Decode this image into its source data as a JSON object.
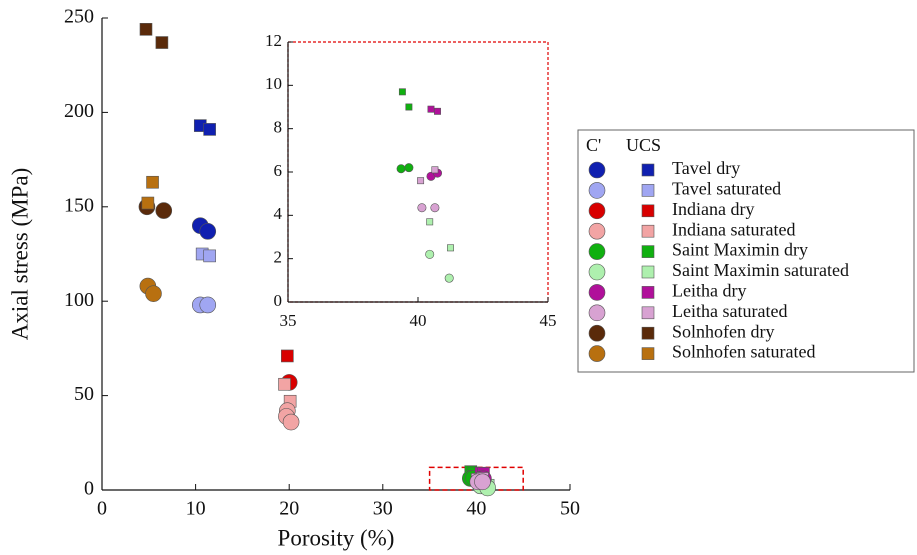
{
  "chart_data": {
    "type": "scatter",
    "xlabel": "Porosity (%)",
    "ylabel": "Axial stress (MPa)",
    "xlim": [
      0,
      50
    ],
    "ylim": [
      0,
      250
    ],
    "xticks": [
      0,
      10,
      20,
      30,
      40,
      50
    ],
    "yticks": [
      0,
      50,
      100,
      150,
      200,
      250
    ],
    "inset": {
      "xlim": [
        35,
        45
      ],
      "ylim": [
        0,
        12
      ],
      "xticks": [
        35,
        40,
        45
      ],
      "yticks": [
        0,
        2,
        4,
        6,
        8,
        10,
        12
      ],
      "frame_color": "#e00000"
    },
    "legend_header": [
      "C'",
      "UCS"
    ],
    "legend_position": "right",
    "series": [
      {
        "name": "Tavel dry",
        "color": "#1020b0",
        "cprime_x": [
          10.5,
          11.3
        ],
        "cprime_y": [
          140,
          137
        ],
        "ucs_x": [
          10.5,
          11.5
        ],
        "ucs_y": [
          193,
          191
        ]
      },
      {
        "name": "Tavel saturated",
        "color": "#a0a6f2",
        "cprime_x": [
          10.5,
          11.3
        ],
        "cprime_y": [
          98,
          98
        ],
        "ucs_x": [
          10.7,
          11.5
        ],
        "ucs_y": [
          125,
          124
        ]
      },
      {
        "name": "Indiana dry",
        "color": "#d80000",
        "cprime_x": [
          20.0
        ],
        "cprime_y": [
          57
        ],
        "ucs_x": [
          19.8
        ],
        "ucs_y": [
          71
        ]
      },
      {
        "name": "Indiana saturated",
        "color": "#f2a4a4",
        "cprime_x": [
          19.8,
          19.7,
          20.2
        ],
        "cprime_y": [
          42,
          39,
          36
        ],
        "ucs_x": [
          19.5,
          20.1
        ],
        "ucs_y": [
          56,
          47
        ]
      },
      {
        "name": "Saint Maximin dry",
        "color": "#10b010",
        "cprime_x": [
          39.35,
          39.65
        ],
        "cprime_y": [
          6.15,
          6.2
        ],
        "ucs_x": [
          39.4,
          39.65
        ],
        "ucs_y": [
          9.7,
          9.0
        ]
      },
      {
        "name": "Saint Maximin saturated",
        "color": "#aef0ae",
        "cprime_x": [
          40.45,
          41.2
        ],
        "cprime_y": [
          2.2,
          1.1
        ],
        "ucs_x": [
          40.45,
          41.25
        ],
        "ucs_y": [
          3.7,
          2.5
        ]
      },
      {
        "name": "Leitha dry",
        "color": "#b0109a",
        "cprime_x": [
          40.5,
          40.75
        ],
        "cprime_y": [
          5.8,
          5.95
        ],
        "ucs_x": [
          40.5,
          40.75
        ],
        "ucs_y": [
          8.9,
          8.8
        ]
      },
      {
        "name": "Leitha saturated",
        "color": "#d8a2d2",
        "cprime_x": [
          40.15,
          40.65
        ],
        "cprime_y": [
          4.35,
          4.35
        ],
        "ucs_x": [
          40.1,
          40.65
        ],
        "ucs_y": [
          5.6,
          6.1
        ]
      },
      {
        "name": "Solnhofen dry",
        "color": "#5a2a0a",
        "cprime_x": [
          4.8,
          6.6
        ],
        "cprime_y": [
          150,
          148
        ],
        "ucs_x": [
          4.7,
          6.4
        ],
        "ucs_y": [
          244,
          237
        ]
      },
      {
        "name": "Solnhofen saturated",
        "color": "#b87010",
        "cprime_x": [
          4.9,
          5.5
        ],
        "cprime_y": [
          108,
          104
        ],
        "ucs_x": [
          5.4,
          4.9
        ],
        "ucs_y": [
          163,
          152
        ]
      }
    ]
  }
}
